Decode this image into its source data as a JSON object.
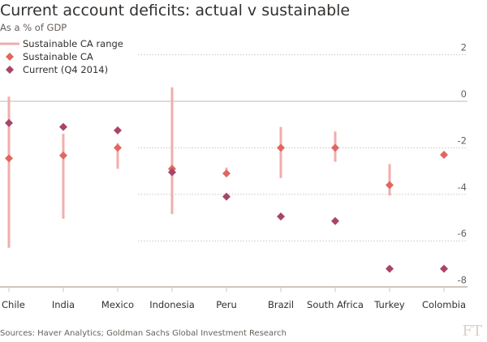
{
  "title": "Current account deficits: actual v sustainable",
  "subtitle": "As a % of GDP",
  "source": "Sources: Haver Analytics; Goldman Sachs Global Investment Research",
  "logo": "FT",
  "chart_data": {
    "type": "scatter",
    "title": "Current account deficits: actual v sustainable",
    "ylabel": "As a % of GDP",
    "ylim": [
      -8,
      2
    ],
    "yticks": [
      2,
      0,
      -2,
      -4,
      -6,
      -8
    ],
    "legend_position": "top-left",
    "legend": [
      "Sustainable CA range",
      "Sustainable CA",
      "Current (Q4 2014)"
    ],
    "colors": {
      "range": "#f0aeae",
      "sustainable": "#e0675f",
      "current": "#a8456a"
    },
    "categories": [
      "Chile",
      "India",
      "Mexico",
      "Indonesia",
      "Peru",
      "Brazil",
      "South Africa",
      "Turkey",
      "Colombia"
    ],
    "range_low": [
      -6.3,
      -5.05,
      -2.9,
      -4.85,
      -3.0,
      -3.3,
      -2.6,
      -4.05,
      null
    ],
    "range_high": [
      0.2,
      -1.4,
      -1.8,
      0.6,
      -2.85,
      -1.1,
      -1.3,
      -2.7,
      null
    ],
    "sustainable": [
      -2.45,
      -2.33,
      -2.0,
      -2.9,
      -3.1,
      -2.0,
      -2.0,
      -3.6,
      -2.3
    ],
    "current": [
      -0.93,
      -1.1,
      -1.25,
      -3.05,
      -4.1,
      -4.95,
      -5.15,
      -7.2,
      -7.2
    ]
  }
}
